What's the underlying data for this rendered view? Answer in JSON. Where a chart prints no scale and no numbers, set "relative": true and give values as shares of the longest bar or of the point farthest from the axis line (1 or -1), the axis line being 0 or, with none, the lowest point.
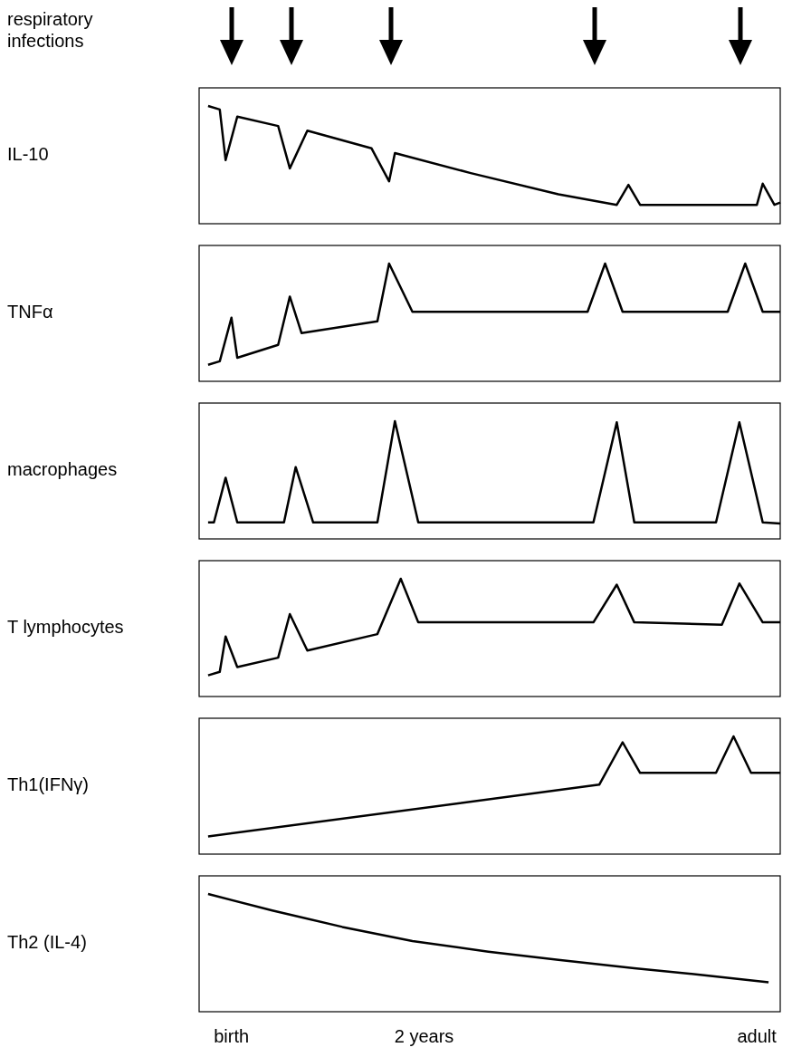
{
  "chart_data": [
    {
      "type": "line",
      "ylabel": "IL-10",
      "annotations": [
        "respiratory infections"
      ],
      "relative": true,
      "categories": [
        null,
        null,
        null,
        null,
        null,
        null,
        null,
        null,
        null,
        null,
        null,
        null,
        null,
        null,
        null,
        null,
        null,
        null,
        null,
        null,
        null,
        null,
        null,
        null,
        null,
        null,
        null,
        null,
        null,
        null,
        null,
        null,
        null,
        null,
        null,
        null,
        null,
        null,
        null,
        null,
        null,
        null,
        null,
        null,
        null,
        null,
        null,
        null,
        null,
        null,
        null,
        null,
        null,
        null,
        null,
        null,
        null,
        null,
        null,
        null,
        null,
        null,
        null,
        null,
        null,
        null,
        null,
        null,
        null,
        null,
        null,
        null,
        null,
        null,
        null,
        null,
        null,
        null,
        null,
        null,
        null,
        null,
        null,
        null,
        null,
        null,
        null,
        null,
        null,
        null,
        null,
        null,
        null,
        null,
        null,
        null,
        null,
        null,
        null,
        null,
        null
      ],
      "series": [
        {
          "color": "#000000",
          "values": [
            null,
            null,
            1,
            null,
            0.97,
            0.54,
            null,
            0.91,
            null,
            null,
            null,
            null,
            null,
            null,
            0.83,
            null,
            0.47,
            null,
            null,
            0.79,
            null,
            null,
            null,
            null,
            null,
            null,
            null,
            null,
            null,
            null,
            0.64,
            null,
            null,
            0.36,
            0.6,
            null,
            null,
            null,
            null,
            null,
            null,
            null,
            null,
            null,
            null,
            null,
            null,
            0.43,
            null,
            null,
            null,
            null,
            null,
            null,
            null,
            null,
            null,
            null,
            null,
            null,
            null,
            null,
            0.25,
            null,
            null,
            null,
            null,
            null,
            null,
            null,
            null,
            null,
            0.16,
            null,
            0.33,
            null,
            0.16,
            null,
            null,
            null,
            null,
            null,
            null,
            null,
            null,
            null,
            null,
            null,
            null,
            null,
            null,
            null,
            null,
            null,
            null,
            null,
            0.16,
            0.34,
            null,
            0.16,
            0.18
          ]
        }
      ]
    },
    {
      "type": "line",
      "ylabel": "TNFα",
      "relative": true,
      "categories": [
        null,
        null,
        null,
        null,
        null,
        null,
        null,
        null,
        null,
        null,
        null,
        null,
        null,
        null,
        null,
        null,
        null,
        null,
        null,
        null,
        null,
        null,
        null,
        null,
        null,
        null,
        null,
        null,
        null,
        null,
        null,
        null,
        null,
        null,
        null,
        null,
        null,
        null,
        null,
        null,
        null,
        null,
        null,
        null,
        null,
        null,
        null,
        null,
        null,
        null,
        null,
        null,
        null,
        null,
        null,
        null,
        null,
        null,
        null,
        null,
        null,
        null,
        null,
        null,
        null,
        null,
        null,
        null,
        null,
        null,
        null,
        null,
        null,
        null,
        null,
        null,
        null,
        null,
        null,
        null,
        null,
        null,
        null,
        null,
        null,
        null,
        null,
        null,
        null,
        null,
        null,
        null,
        null,
        null,
        null,
        null,
        null,
        null,
        null,
        null,
        null
      ],
      "series": [
        {
          "color": "#000000",
          "values": [
            null,
            null,
            0.14,
            null,
            0.17,
            null,
            0.54,
            0.2,
            null,
            null,
            null,
            null,
            null,
            null,
            0.31,
            null,
            0.72,
            null,
            0.41,
            null,
            null,
            null,
            null,
            null,
            null,
            null,
            null,
            null,
            null,
            null,
            null,
            0.51,
            null,
            1,
            null,
            null,
            null,
            0.59,
            null,
            null,
            null,
            null,
            null,
            null,
            null,
            null,
            null,
            null,
            null,
            null,
            null,
            null,
            null,
            null,
            null,
            null,
            null,
            null,
            null,
            null,
            null,
            null,
            null,
            null,
            null,
            null,
            null,
            0.59,
            null,
            null,
            1,
            null,
            null,
            0.59,
            null,
            null,
            null,
            null,
            null,
            null,
            null,
            null,
            null,
            null,
            null,
            null,
            null,
            null,
            null,
            null,
            null,
            0.59,
            null,
            null,
            1,
            null,
            null,
            0.59,
            null,
            null,
            0.59
          ]
        }
      ]
    },
    {
      "type": "line",
      "ylabel": "macrophages",
      "relative": true,
      "categories": [
        null,
        null,
        null,
        null,
        null,
        null,
        null,
        null,
        null,
        null,
        null,
        null,
        null,
        null,
        null,
        null,
        null,
        null,
        null,
        null,
        null,
        null,
        null,
        null,
        null,
        null,
        null,
        null,
        null,
        null,
        null,
        null,
        null,
        null,
        null,
        null,
        null,
        null,
        null,
        null,
        null,
        null,
        null,
        null,
        null,
        null,
        null,
        null,
        null,
        null,
        null,
        null,
        null,
        null,
        null,
        null,
        null,
        null,
        null,
        null,
        null,
        null,
        null,
        null,
        null,
        null,
        null,
        null,
        null,
        null,
        null,
        null,
        null,
        null,
        null,
        null,
        null,
        null,
        null,
        null,
        null,
        null,
        null,
        null,
        null,
        null,
        null,
        null,
        null,
        null,
        null,
        null,
        null,
        null,
        null,
        null,
        null,
        null,
        null,
        null,
        null
      ],
      "series": [
        {
          "color": "#000000",
          "values": [
            null,
            null,
            0.14,
            0.14,
            null,
            0.52,
            null,
            0.14,
            null,
            null,
            null,
            null,
            null,
            null,
            null,
            0.14,
            null,
            0.61,
            null,
            null,
            0.14,
            null,
            null,
            null,
            null,
            null,
            null,
            null,
            null,
            null,
            null,
            0.14,
            null,
            null,
            1,
            null,
            null,
            null,
            0.14,
            null,
            null,
            null,
            null,
            null,
            null,
            null,
            null,
            null,
            null,
            null,
            null,
            null,
            null,
            null,
            null,
            null,
            null,
            null,
            null,
            null,
            null,
            null,
            null,
            null,
            null,
            null,
            null,
            null,
            0.14,
            null,
            null,
            null,
            0.99,
            null,
            null,
            0.14,
            null,
            null,
            null,
            null,
            null,
            null,
            null,
            null,
            null,
            null,
            null,
            null,
            null,
            0.14,
            null,
            null,
            null,
            0.99,
            null,
            null,
            null,
            0.14,
            null,
            null,
            0.13
          ]
        }
      ]
    },
    {
      "type": "line",
      "ylabel": "T lymphocytes",
      "relative": true,
      "categories": [
        null,
        null,
        null,
        null,
        null,
        null,
        null,
        null,
        null,
        null,
        null,
        null,
        null,
        null,
        null,
        null,
        null,
        null,
        null,
        null,
        null,
        null,
        null,
        null,
        null,
        null,
        null,
        null,
        null,
        null,
        null,
        null,
        null,
        null,
        null,
        null,
        null,
        null,
        null,
        null,
        null,
        null,
        null,
        null,
        null,
        null,
        null,
        null,
        null,
        null,
        null,
        null,
        null,
        null,
        null,
        null,
        null,
        null,
        null,
        null,
        null,
        null,
        null,
        null,
        null,
        null,
        null,
        null,
        null,
        null,
        null,
        null,
        null,
        null,
        null,
        null,
        null,
        null,
        null,
        null,
        null,
        null,
        null,
        null,
        null,
        null,
        null,
        null,
        null,
        null,
        null,
        null,
        null,
        null,
        null,
        null,
        null,
        null,
        null,
        null,
        null
      ],
      "series": [
        {
          "color": "#000000",
          "values": [
            null,
            null,
            0.18,
            null,
            0.21,
            0.51,
            null,
            0.25,
            null,
            null,
            null,
            null,
            null,
            null,
            0.33,
            null,
            0.7,
            null,
            null,
            0.39,
            null,
            null,
            null,
            null,
            null,
            null,
            null,
            null,
            null,
            null,
            null,
            0.53,
            null,
            null,
            null,
            1,
            null,
            null,
            0.63,
            null,
            null,
            null,
            null,
            null,
            null,
            null,
            null,
            null,
            null,
            null,
            null,
            null,
            null,
            null,
            null,
            null,
            null,
            null,
            null,
            null,
            null,
            null,
            null,
            null,
            null,
            null,
            null,
            null,
            0.63,
            null,
            null,
            null,
            0.95,
            null,
            null,
            0.63,
            null,
            null,
            null,
            null,
            null,
            null,
            null,
            null,
            null,
            null,
            null,
            null,
            null,
            null,
            0.61,
            null,
            null,
            0.96,
            null,
            null,
            null,
            0.63,
            null,
            null,
            0.63
          ]
        }
      ]
    },
    {
      "type": "line",
      "ylabel": "Th1(IFNγ)",
      "relative": true,
      "categories": [
        null,
        null,
        null,
        null,
        null,
        null,
        null,
        null,
        null,
        null,
        null,
        null,
        null,
        null,
        null,
        null,
        null,
        null,
        null,
        null,
        null,
        null,
        null,
        null,
        null,
        null,
        null,
        null,
        null,
        null,
        null,
        null,
        null,
        null,
        null,
        null,
        null,
        null,
        null,
        null,
        null,
        null,
        null,
        null,
        null,
        null,
        null,
        null,
        null,
        null,
        null,
        null,
        null,
        null,
        null,
        null,
        null,
        null,
        null,
        null,
        null,
        null,
        null,
        null,
        null,
        null,
        null,
        null,
        null,
        null,
        null,
        null,
        null,
        null,
        null,
        null,
        null,
        null,
        null,
        null,
        null,
        null,
        null,
        null,
        null,
        null,
        null,
        null,
        null,
        null,
        null,
        null,
        null,
        null,
        null,
        null,
        null,
        null,
        null,
        null,
        null
      ],
      "series": [
        {
          "color": "#000000",
          "values": [
            null,
            null,
            0.15,
            null,
            null,
            null,
            null,
            null,
            null,
            null,
            null,
            null,
            null,
            null,
            null,
            null,
            null,
            null,
            null,
            null,
            null,
            null,
            null,
            null,
            null,
            null,
            null,
            null,
            null,
            null,
            null,
            null,
            null,
            null,
            null,
            null,
            null,
            null,
            null,
            null,
            null,
            null,
            null,
            null,
            null,
            null,
            null,
            null,
            null,
            null,
            null,
            null,
            null,
            null,
            null,
            null,
            null,
            null,
            null,
            null,
            null,
            null,
            null,
            null,
            null,
            null,
            null,
            null,
            null,
            0.59,
            null,
            null,
            null,
            0.95,
            null,
            null,
            0.69,
            null,
            null,
            null,
            null,
            null,
            null,
            null,
            null,
            null,
            null,
            null,
            null,
            0.69,
            null,
            null,
            1,
            null,
            null,
            0.69,
            null,
            null,
            null,
            null,
            0.69
          ]
        }
      ]
    },
    {
      "type": "line",
      "ylabel": "Th2 (IL-4)",
      "relative": true,
      "categories": [
        null,
        null,
        null,
        null,
        null,
        null,
        "birth",
        null,
        null,
        null,
        null,
        null,
        null,
        null,
        null,
        null,
        null,
        null,
        null,
        null,
        null,
        null,
        null,
        null,
        null,
        null,
        null,
        null,
        null,
        null,
        null,
        null,
        null,
        null,
        null,
        null,
        null,
        null,
        null,
        "2 years",
        null,
        null,
        null,
        null,
        null,
        null,
        null,
        null,
        null,
        null,
        null,
        null,
        null,
        null,
        null,
        null,
        null,
        null,
        null,
        null,
        null,
        null,
        null,
        null,
        null,
        null,
        null,
        null,
        null,
        null,
        null,
        null,
        null,
        null,
        null,
        null,
        null,
        null,
        null,
        null,
        null,
        null,
        null,
        null,
        null,
        null,
        null,
        null,
        null,
        null,
        null,
        null,
        null,
        null,
        null,
        null,
        "adult",
        null,
        null,
        null,
        null
      ],
      "series": [
        {
          "color": "#000000",
          "values": [
            null,
            null,
            1,
            null,
            null,
            null,
            null,
            null,
            null,
            null,
            null,
            null,
            null,
            0.86,
            null,
            null,
            null,
            null,
            null,
            null,
            null,
            null,
            null,
            null,
            null,
            0.72,
            null,
            null,
            null,
            null,
            null,
            null,
            null,
            null,
            null,
            null,
            null,
            0.6,
            null,
            null,
            null,
            null,
            null,
            null,
            null,
            null,
            null,
            null,
            null,
            null,
            0.51,
            null,
            null,
            null,
            null,
            null,
            null,
            null,
            null,
            null,
            null,
            null,
            0.44,
            null,
            null,
            null,
            null,
            null,
            null,
            null,
            null,
            null,
            null,
            null,
            null,
            0.37,
            null,
            null,
            null,
            null,
            null,
            null,
            null,
            null,
            null,
            null,
            null,
            0.31,
            null,
            null,
            null,
            null,
            null,
            null,
            null,
            null,
            null,
            null,
            0.25,
            null,
            null
          ]
        }
      ]
    }
  ]
}
